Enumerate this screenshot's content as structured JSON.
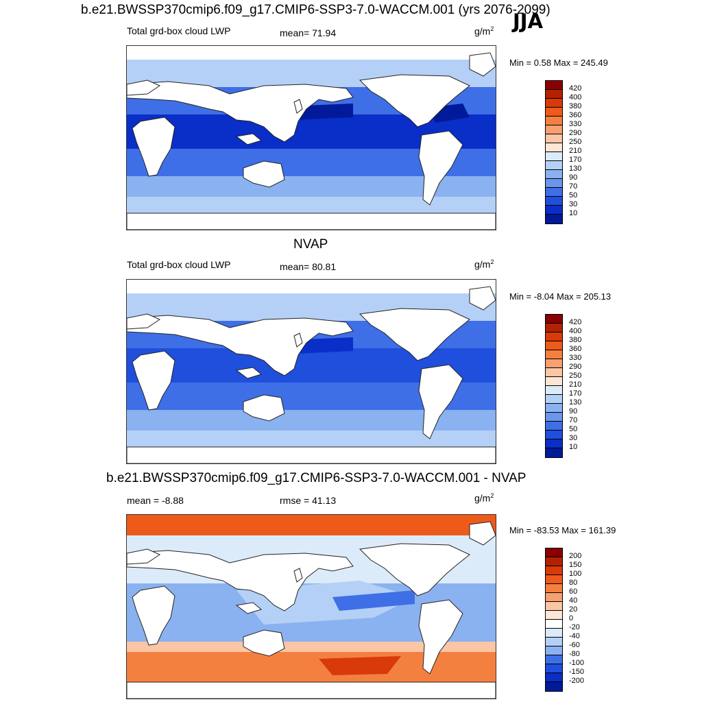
{
  "header": {
    "main_title": "b.e21.BWSSP370cmip6.f09_g17.CMIP6-SSP3-7.0-WACCM.001 (yrs 2076-2099)",
    "season": "JJA"
  },
  "panels": [
    {
      "id": "model",
      "title": "",
      "left_label": "Total grd-box cloud LWP",
      "center_label": "mean=  71.94",
      "units": "g/m",
      "units_sup": "2",
      "minmax": "Min =   0.58 Max = 245.49",
      "colorbar": {
        "labels": [
          "420",
          "400",
          "380",
          "360",
          "330",
          "290",
          "250",
          "210",
          "170",
          "130",
          "90",
          "70",
          "50",
          "30",
          "10"
        ],
        "colors": [
          "#8b0000",
          "#b22200",
          "#d83a0a",
          "#ee5a1a",
          "#f48040",
          "#f7a070",
          "#fbc6a6",
          "#fde6d6",
          "#dcebfa",
          "#b4d0f6",
          "#8ab2f0",
          "#6a96ec",
          "#3f6fe6",
          "#1f4fdc",
          "#0a2ec8",
          "#001a99"
        ]
      },
      "field_colors": {
        "high": "#0a2ec8",
        "mid": "#3f6fe6",
        "low": "#8ab2f0",
        "lowest": "#b4d0f6",
        "ice": "#dcebfa",
        "darkest": "#001a99"
      }
    },
    {
      "id": "obs",
      "title": "NVAP",
      "left_label": "Total grd-box cloud LWP",
      "center_label": "mean=  80.81",
      "units": "g/m",
      "units_sup": "2",
      "minmax": "Min =  -8.04 Max = 205.13",
      "colorbar": {
        "labels": [
          "420",
          "400",
          "380",
          "360",
          "330",
          "290",
          "250",
          "210",
          "170",
          "130",
          "90",
          "70",
          "50",
          "30",
          "10"
        ],
        "colors": [
          "#8b0000",
          "#b22200",
          "#d83a0a",
          "#ee5a1a",
          "#f48040",
          "#f7a070",
          "#fbc6a6",
          "#fde6d6",
          "#dcebfa",
          "#b4d0f6",
          "#8ab2f0",
          "#6a96ec",
          "#3f6fe6",
          "#1f4fdc",
          "#0a2ec8",
          "#001a99"
        ]
      },
      "field_colors": {
        "high": "#1f4fdc",
        "mid": "#3f6fe6",
        "low": "#8ab2f0",
        "lowest": "#b4d0f6",
        "ice": "#ffffff",
        "darkest": "#0a2ec8"
      }
    },
    {
      "id": "diff",
      "title": "b.e21.BWSSP370cmip6.f09_g17.CMIP6-SSP3-7.0-WACCM.001 - NVAP",
      "left_label": "mean =  -8.88",
      "center_label": "rmse =  41.13",
      "units": "g/m",
      "units_sup": "2",
      "minmax": "Min = -83.53 Max = 161.39",
      "colorbar": {
        "labels": [
          "200",
          "150",
          "100",
          "80",
          "60",
          "40",
          "20",
          "0",
          "-20",
          "-40",
          "-60",
          "-80",
          "-100",
          "-150",
          "-200"
        ],
        "colors": [
          "#8b0000",
          "#b22200",
          "#d83a0a",
          "#ee5a1a",
          "#f48040",
          "#f7a070",
          "#fbc6a6",
          "#fde6d6",
          "#ffffff",
          "#dcebfa",
          "#b4d0f6",
          "#8ab2f0",
          "#3f6fe6",
          "#1f4fdc",
          "#0a2ec8",
          "#001a99"
        ]
      },
      "field_colors": {
        "high": "#b4d0f6",
        "mid": "#8ab2f0",
        "low": "#dcebfa",
        "lowest": "#ffffff",
        "ice": "#ffffff",
        "darkest": "#3f6fe6",
        "south": "#f48040",
        "southlight": "#fbc6a6",
        "arctic": "#ee5a1a"
      }
    }
  ]
}
